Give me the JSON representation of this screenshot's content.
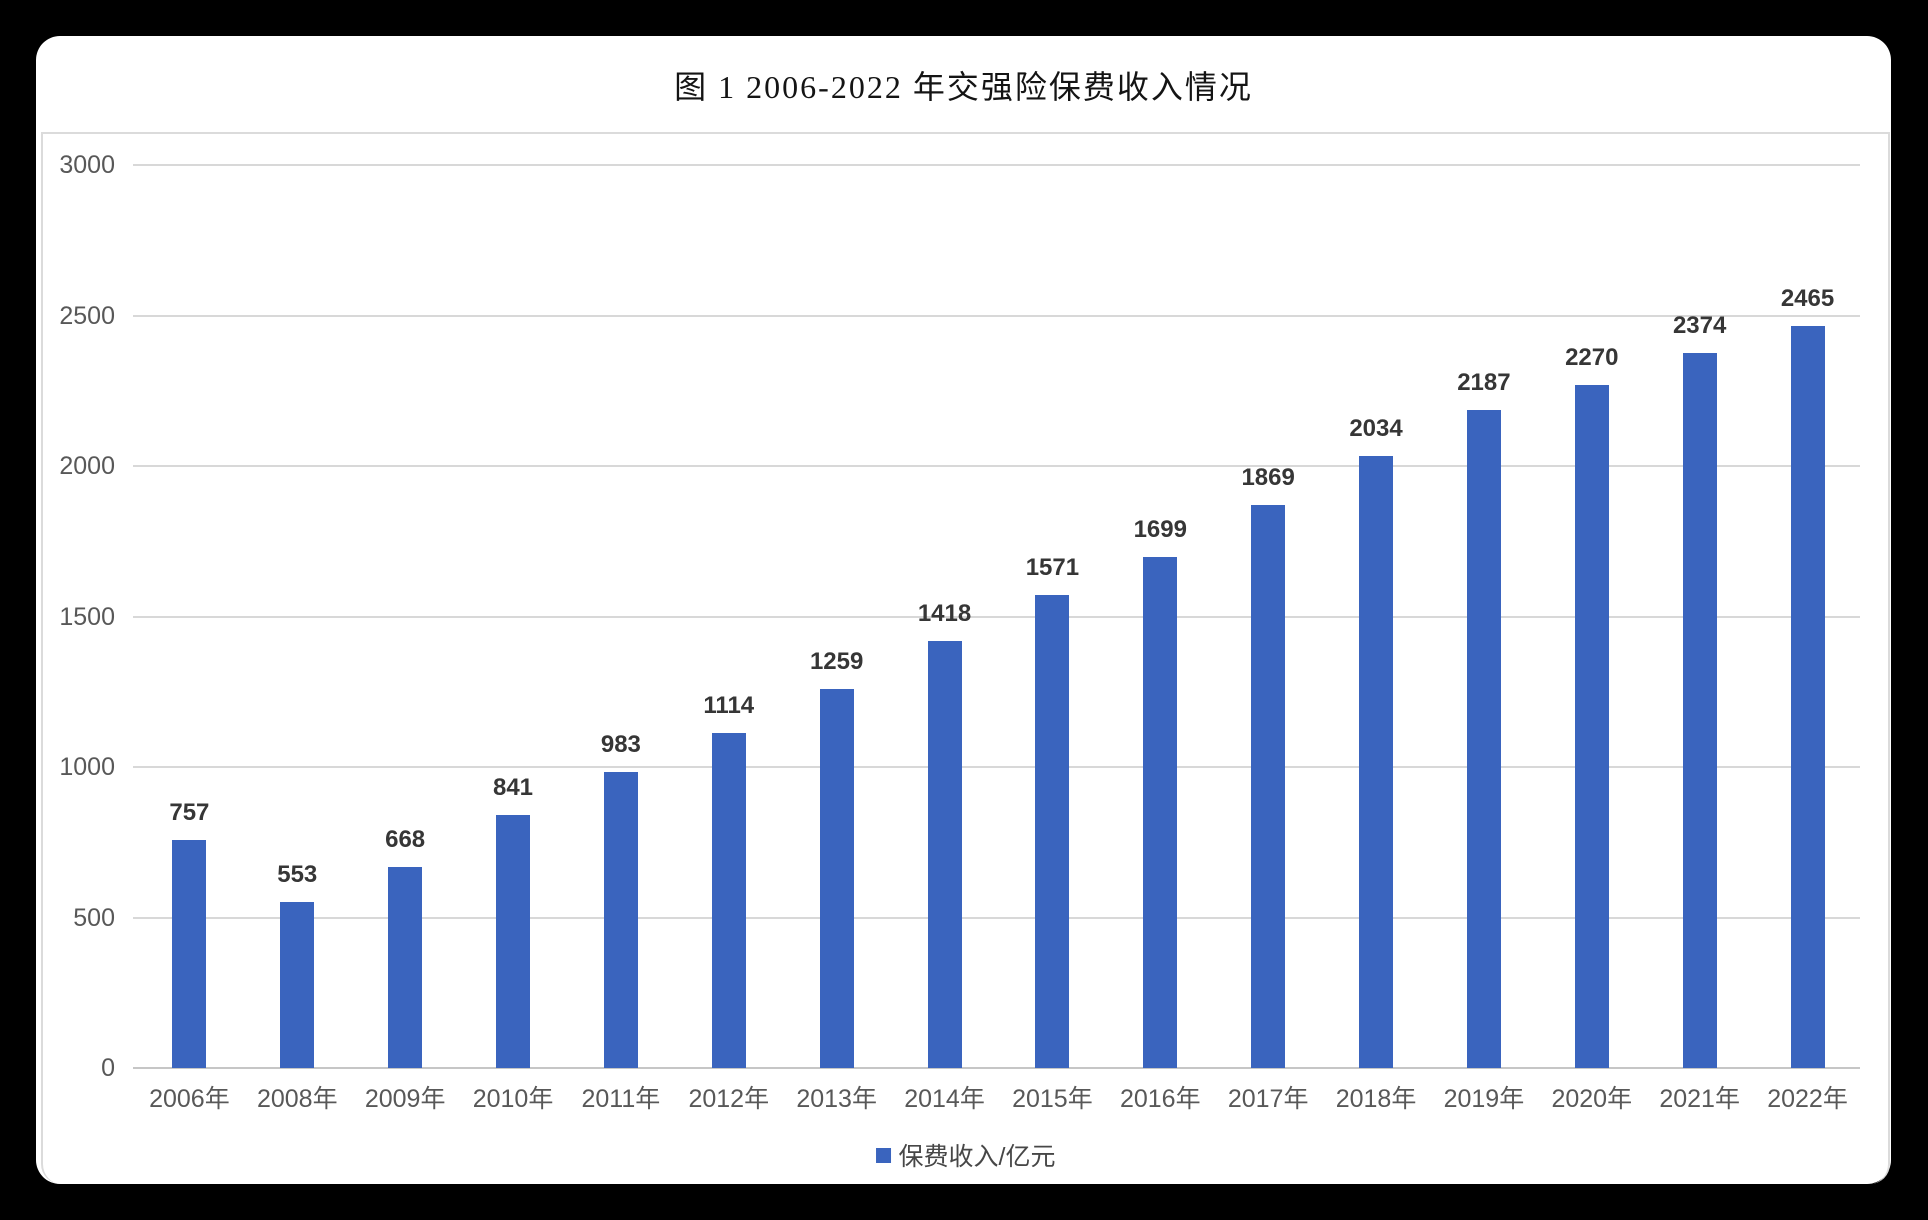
{
  "title": "图 1 2006-2022 年交强险保费收入情况",
  "colors": {
    "background": "#000000",
    "panel": "#ffffff",
    "bar": "#3a64be",
    "gridline": "#d8d8d8",
    "axis_line": "#c6c6c6",
    "tick_text": "#585858",
    "value_text": "#363636",
    "title_text": "#141414"
  },
  "legend": {
    "label": "保费收入/亿元",
    "marker": "blue-square"
  },
  "chart_data": {
    "type": "bar",
    "title": "图 1 2006-2022 年交强险保费收入情况",
    "categories": [
      "2006年",
      "2008年",
      "2009年",
      "2010年",
      "2011年",
      "2012年",
      "2013年",
      "2014年",
      "2015年",
      "2016年",
      "2017年",
      "2018年",
      "2019年",
      "2020年",
      "2021年",
      "2022年"
    ],
    "series": [
      {
        "name": "保费收入/亿元",
        "values": [
          757,
          553,
          668,
          841,
          983,
          1114,
          1259,
          1418,
          1571,
          1699,
          1869,
          2034,
          2187,
          2270,
          2374,
          2465
        ]
      }
    ],
    "xlabel": "",
    "ylabel": "",
    "ylim": [
      0,
      3000
    ],
    "yticks": [
      0,
      500,
      1000,
      1500,
      2000,
      2500,
      3000
    ],
    "grid": true,
    "data_labels": true,
    "legend_position": "bottom",
    "bar_color": "#3a64be"
  }
}
